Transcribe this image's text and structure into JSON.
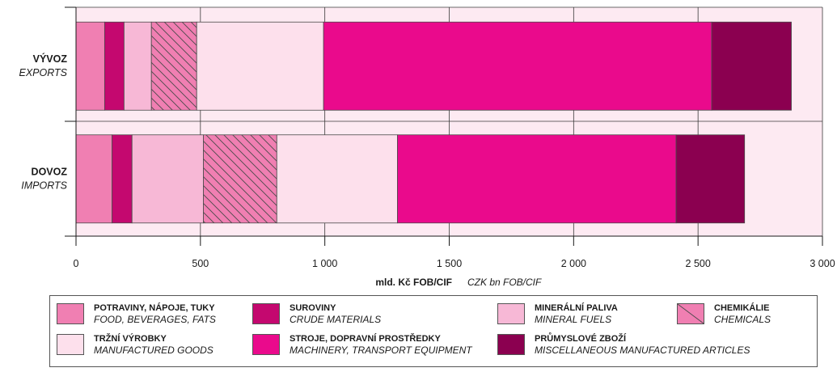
{
  "chart_data": {
    "type": "bar",
    "orientation": "horizontal",
    "stacked": true,
    "categories": [
      {
        "label": "VÝVOZ",
        "sublabel": "EXPORTS"
      },
      {
        "label": "DOVOZ",
        "sublabel": "IMPORTS"
      }
    ],
    "series": [
      {
        "name": "POTRAVINY, NÁPOJE, TUKY",
        "name_en": "FOOD, BEVERAGES, FATS",
        "color": "#f07fb2",
        "values": [
          115,
          145
        ]
      },
      {
        "name": "SUROVINY",
        "name_en": "CRUDE MATERIALS",
        "color": "#c4086f",
        "values": [
          78,
          80
        ]
      },
      {
        "name": "MINERÁLNÍ PALIVA",
        "name_en": "MINERAL FUELS",
        "color": "#f7b8d6",
        "values": [
          110,
          287
        ]
      },
      {
        "name": "CHEMIKÁLIE",
        "name_en": "CHEMICALS",
        "color": "#f07fb2",
        "pattern": "hatch",
        "values": [
          182,
          295
        ]
      },
      {
        "name": "TRŽNÍ VÝROBKY",
        "name_en": "MANUFACTURED GOODS",
        "color": "#fde0ec",
        "values": [
          510,
          485
        ]
      },
      {
        "name": "STROJE, DOPRAVNÍ PROSTŘEDKY",
        "name_en": "MACHINERY, TRANSPORT EQUIPMENT",
        "color": "#ea0a8c",
        "values": [
          1560,
          1120
        ]
      },
      {
        "name": "PRŮMYSLOVÉ ZBOŽÍ",
        "name_en": "MISCELLANEOUS MANUFACTURED ARTICLES",
        "color": "#8b0050",
        "values": [
          320,
          275
        ]
      }
    ],
    "x_ticks": [
      "0",
      "500",
      "1 000",
      "1 500",
      "2 000",
      "2 500",
      "3 000"
    ],
    "xlim": [
      0,
      3000
    ],
    "xlabel": "mld. Kč FOB/CIF",
    "xlabel_en": "CZK bn FOB/CIF",
    "grid": true,
    "background_color": "#fdeaf2",
    "legend_position": "bottom"
  }
}
